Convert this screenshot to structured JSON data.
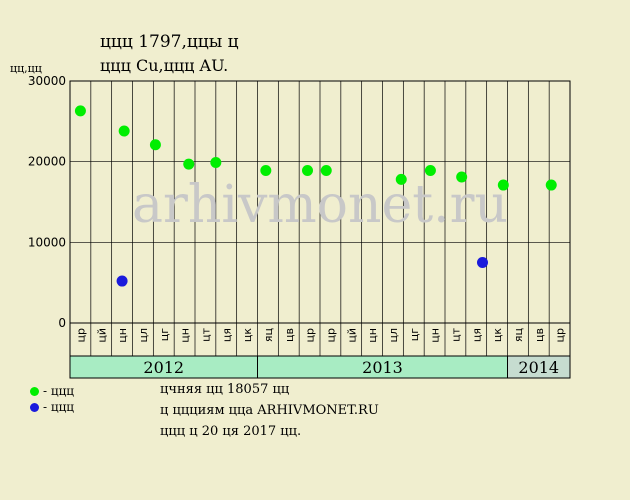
{
  "header": {
    "title_line1": "ццц 1797,ццы ц",
    "title_line2": "ццц Cu,ццц AU.",
    "y_unit": "цц,цц"
  },
  "watermark": "arhivmonet.ru",
  "legend": [
    {
      "label": "- ццц",
      "color": "#00ee00"
    },
    {
      "label": "- ццц",
      "color": "#1a1adc"
    }
  ],
  "notes": [
    "цчняя цц 18057 цц",
    "ц ццциям цца ARHIVMONET.RU",
    "ццц ц 20 ця 2017 цц."
  ],
  "colors": {
    "background": "#f0eecf",
    "plot_bg": "#f0eecf",
    "year_band": "#a8ecc3",
    "year_band_last": "#c6dcd0",
    "series1": "#00ee00",
    "series2": "#1a1adc",
    "watermark": "#c8c8c8"
  },
  "chart_data": {
    "type": "scatter",
    "ylim": [
      0,
      30000
    ],
    "yticks": [
      0,
      10000,
      20000,
      30000
    ],
    "grid": true,
    "months": [
      "цр",
      "цй",
      "цн",
      "цл",
      "цг",
      "цн",
      "цт",
      "ця",
      "цк",
      "яц",
      "цв",
      "цр",
      "цр",
      "цй",
      "цн",
      "цл",
      "цг",
      "цн",
      "цт",
      "ця",
      "цк",
      "яц",
      "цв",
      "цр"
    ],
    "years": [
      {
        "label": "2012",
        "start": 0,
        "end": 9
      },
      {
        "label": "2013",
        "start": 9,
        "end": 21
      },
      {
        "label": "2014",
        "start": 21,
        "end": 24
      }
    ],
    "series": [
      {
        "color": "#00ee00",
        "points": [
          {
            "x": 0.5,
            "y": 26300
          },
          {
            "x": 2.6,
            "y": 23800
          },
          {
            "x": 4.1,
            "y": 22100
          },
          {
            "x": 5.7,
            "y": 19700
          },
          {
            "x": 7.0,
            "y": 19900
          },
          {
            "x": 9.4,
            "y": 18900
          },
          {
            "x": 11.4,
            "y": 18900
          },
          {
            "x": 12.3,
            "y": 18900
          },
          {
            "x": 15.9,
            "y": 17800
          },
          {
            "x": 17.3,
            "y": 18900
          },
          {
            "x": 18.8,
            "y": 18100
          },
          {
            "x": 20.8,
            "y": 17100
          },
          {
            "x": 23.1,
            "y": 17100
          }
        ]
      },
      {
        "color": "#1a1adc",
        "points": [
          {
            "x": 2.5,
            "y": 5200
          },
          {
            "x": 19.8,
            "y": 7500
          }
        ]
      }
    ]
  }
}
